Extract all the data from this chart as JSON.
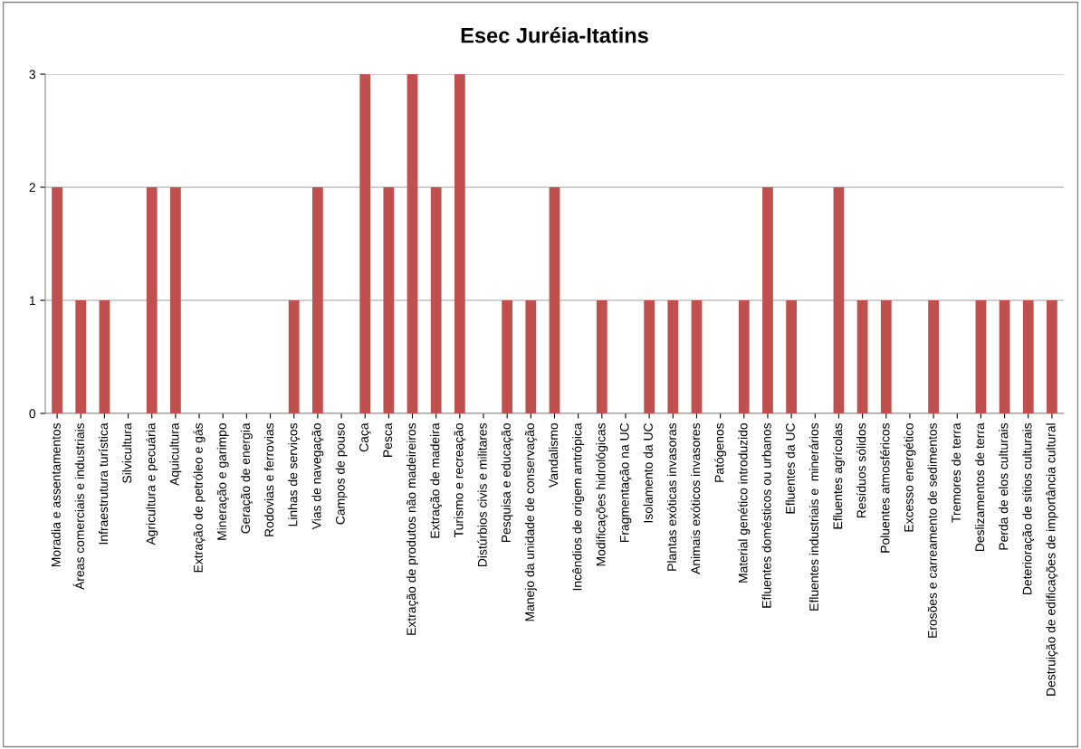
{
  "chart_data": {
    "type": "bar",
    "title": "Esec Juréia-Itatins",
    "categories": [
      "Moradia e assentamentos",
      "Áreas comerciais e industriais",
      "Infraestrutura turística",
      "Silvicultura",
      "Agricultura e pecuária",
      "Aquicultura",
      "Extração de petróleo e gás",
      "Mineração e garimpo",
      "Geração de energia",
      "Rodovias e ferrovias",
      "Linhas de serviços",
      "Vias de navegação",
      "Campos de pouso",
      "Caça",
      "Pesca",
      "Extração de produtos não madeireiros",
      "Extração de madeira",
      "Turismo e recreação",
      "Distúrbios civis e militares",
      "Pesquisa e educação",
      "Manejo da unidade de conservação",
      "Vandalismo",
      "Incêndios de origem antrópica",
      "Modificações hidrológicas",
      "Fragmentação na UC",
      "Isolamento da UC",
      "Plantas exóticas invasoras",
      "Animais exóticos invasores",
      "Patógenos",
      "Material genético introduzido",
      "Efluentes domésticos ou urbanos",
      "Efluentes da UC",
      "Efluentes industriais e  minerários",
      "Efluentes agrícolas",
      "Resíduos sólidos",
      "Poluentes atmosféricos",
      "Excesso energético",
      "Erosões e carreamento de sedimentos",
      "Tremores de terra",
      "Deslizamentos de terra",
      "Perda de elos culturais",
      "Deterioração de sítios culturais",
      "Destruição de edificações de importância cultural"
    ],
    "values": [
      2,
      1,
      1,
      0,
      2,
      2,
      0,
      0,
      0,
      0,
      1,
      2,
      0,
      3,
      2,
      3,
      2,
      3,
      0,
      1,
      1,
      2,
      0,
      1,
      0,
      1,
      1,
      1,
      0,
      1,
      2,
      1,
      0,
      2,
      1,
      1,
      0,
      1,
      0,
      1,
      1,
      1,
      1
    ],
    "color": "#c0504d",
    "ylim": [
      0,
      3
    ],
    "yticks": [
      0,
      1,
      2,
      3
    ],
    "grid": "y",
    "legend": false
  }
}
